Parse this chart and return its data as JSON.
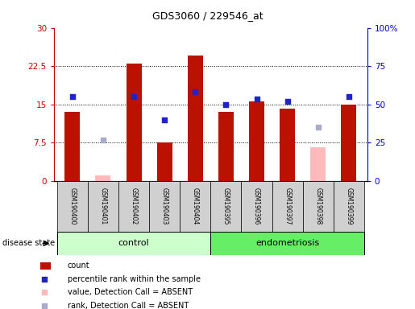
{
  "title": "GDS3060 / 229546_at",
  "samples": [
    "GSM190400",
    "GSM190401",
    "GSM190402",
    "GSM190403",
    "GSM190404",
    "GSM190395",
    "GSM190396",
    "GSM190397",
    "GSM190398",
    "GSM190399"
  ],
  "groups": [
    "control",
    "control",
    "control",
    "control",
    "control",
    "endometriosis",
    "endometriosis",
    "endometriosis",
    "endometriosis",
    "endometriosis"
  ],
  "red_bars": [
    13.5,
    null,
    23.0,
    7.5,
    24.5,
    13.5,
    15.5,
    14.2,
    null,
    15.0
  ],
  "pink_bars": [
    null,
    1.0,
    null,
    null,
    null,
    null,
    null,
    null,
    6.5,
    null
  ],
  "blue_squares": [
    16.5,
    null,
    16.5,
    12.0,
    17.5,
    15.0,
    16.0,
    15.5,
    null,
    16.5
  ],
  "lavender_squares": [
    null,
    8.0,
    null,
    null,
    null,
    null,
    null,
    null,
    10.5,
    null
  ],
  "ylim_left": [
    0,
    30
  ],
  "ylim_right": [
    0,
    100
  ],
  "yticks_left": [
    0,
    7.5,
    15,
    22.5,
    30
  ],
  "yticks_right": [
    0,
    25,
    50,
    75,
    100
  ],
  "ytick_labels_left": [
    "0",
    "7.5",
    "15",
    "22.5",
    "30"
  ],
  "ytick_labels_right": [
    "0",
    "25",
    "50",
    "75",
    "100%"
  ],
  "left_axis_color": "#cc0000",
  "right_axis_color": "#0000cc",
  "bar_color": "#bb1100",
  "pink_color": "#ffbbbb",
  "blue_color": "#2222cc",
  "lavender_color": "#aaaacc",
  "control_color": "#ccffcc",
  "endo_color": "#66ee66",
  "grid_color": "#000000",
  "sample_box_color": "#d0d0d0",
  "bar_width": 0.5,
  "sq_size": 22
}
